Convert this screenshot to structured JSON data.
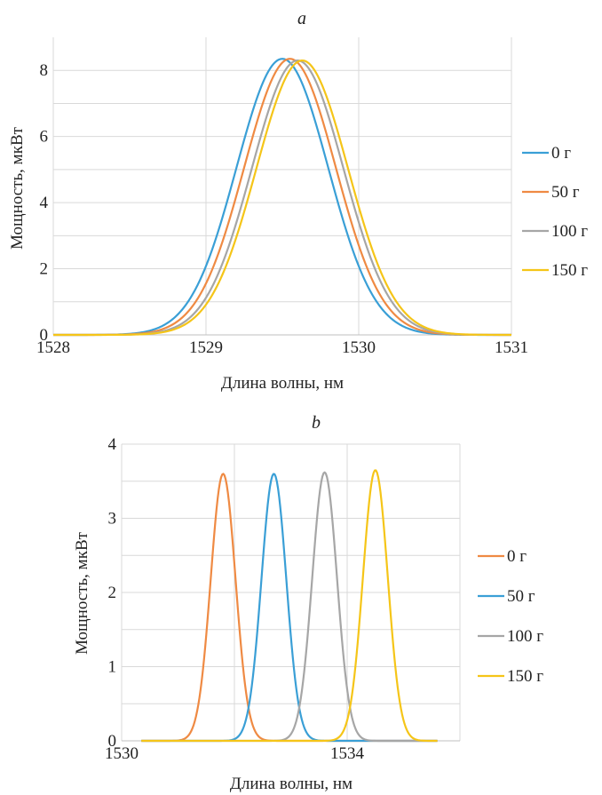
{
  "chart_data": [
    {
      "type": "line",
      "title": "a",
      "xlabel": "Длина волны, нм",
      "ylabel": "Мощность, мкВт",
      "xlim": [
        1528,
        1531
      ],
      "ylim": [
        0,
        9
      ],
      "xticks": [
        1528,
        1529,
        1530,
        1531
      ],
      "yticks": [
        0,
        2,
        4,
        6,
        8
      ],
      "grid": true,
      "legend_position": "right",
      "series": [
        {
          "name": "0 г",
          "color": "#3a9fd6",
          "peak_x": 1529.5,
          "peak_y": 8.35,
          "sigma": 0.3,
          "x": [
            1528.0,
            1528.5,
            1528.8,
            1529.0,
            1529.2,
            1529.5,
            1529.8,
            1530.0,
            1530.2,
            1530.5,
            1531.0
          ],
          "y": [
            0.0,
            0.13,
            1.05,
            2.3,
            5.2,
            8.35,
            5.2,
            2.3,
            0.88,
            0.13,
            0.0
          ]
        },
        {
          "name": "50 г",
          "color": "#ef8a43",
          "peak_x": 1529.55,
          "peak_y": 8.35,
          "sigma": 0.3,
          "x": [
            1528.0,
            1528.5,
            1528.8,
            1529.0,
            1529.25,
            1529.55,
            1529.85,
            1530.0,
            1530.25,
            1530.5,
            1531.0
          ],
          "y": [
            0.0,
            0.1,
            0.85,
            1.8,
            5.2,
            8.35,
            5.2,
            3.0,
            0.88,
            0.2,
            0.0
          ]
        },
        {
          "name": "100 г",
          "color": "#a6a6a6",
          "peak_x": 1529.6,
          "peak_y": 8.3,
          "sigma": 0.3,
          "x": [
            1528.0,
            1528.5,
            1528.8,
            1529.0,
            1529.3,
            1529.6,
            1529.9,
            1530.0,
            1530.3,
            1530.5,
            1531.0
          ],
          "y": [
            0.0,
            0.08,
            0.7,
            1.5,
            5.2,
            8.3,
            5.2,
            3.7,
            0.88,
            0.24,
            0.0
          ]
        },
        {
          "name": "150 г",
          "color": "#f5c518",
          "peak_x": 1529.63,
          "peak_y": 8.3,
          "sigma": 0.3,
          "x": [
            1528.0,
            1528.5,
            1528.8,
            1529.0,
            1529.33,
            1529.63,
            1529.93,
            1530.0,
            1530.33,
            1530.5,
            1531.0
          ],
          "y": [
            0.0,
            0.06,
            0.6,
            1.3,
            5.2,
            8.3,
            5.2,
            4.1,
            0.88,
            0.3,
            0.0
          ]
        }
      ]
    },
    {
      "type": "line",
      "title": "b",
      "xlabel": "Длина волны, нм",
      "ylabel": "Мощность, мкВт",
      "xlim": [
        1530,
        1536
      ],
      "ylim": [
        0,
        4
      ],
      "xticks": [
        1530,
        1534
      ],
      "yticks": [
        0,
        1,
        2,
        3,
        4
      ],
      "minor_x_gridlines": [
        1532,
        1536
      ],
      "minor_y_gridlines": [
        0.5,
        1.5,
        2.5,
        3.5
      ],
      "grid": true,
      "legend_position": "right",
      "series": [
        {
          "name": "0 г",
          "color": "#ef8a43",
          "peak_x": 1531.8,
          "peak_y": 3.6,
          "sigma": 0.22,
          "range": [
            1530.35,
            1535.6
          ],
          "x": [
            1530.35,
            1531.0,
            1531.4,
            1531.8,
            1532.2,
            1532.6,
            1533.0,
            1535.6
          ],
          "y": [
            0.0,
            0.05,
            0.8,
            3.6,
            0.8,
            0.1,
            0.02,
            0.0
          ]
        },
        {
          "name": "50 г",
          "color": "#3a9fd6",
          "peak_x": 1532.7,
          "peak_y": 3.6,
          "sigma": 0.22,
          "range": [
            1530.35,
            1535.6
          ],
          "x": [
            1530.35,
            1531.9,
            1532.3,
            1532.7,
            1533.1,
            1533.5,
            1533.9,
            1535.6
          ],
          "y": [
            0.0,
            0.05,
            0.8,
            3.6,
            0.8,
            0.1,
            0.02,
            0.0
          ]
        },
        {
          "name": "100 г",
          "color": "#a6a6a6",
          "peak_x": 1533.6,
          "peak_y": 3.62,
          "sigma": 0.22,
          "range": [
            1530.35,
            1535.6
          ],
          "x": [
            1530.35,
            1532.8,
            1533.2,
            1533.6,
            1534.0,
            1534.4,
            1534.8,
            1535.6
          ],
          "y": [
            0.0,
            0.05,
            0.8,
            3.62,
            0.8,
            0.1,
            0.02,
            0.0
          ]
        },
        {
          "name": "150 г",
          "color": "#f5c518",
          "peak_x": 1534.5,
          "peak_y": 3.65,
          "sigma": 0.22,
          "range": [
            1530.35,
            1535.6
          ],
          "x": [
            1530.35,
            1533.7,
            1534.1,
            1534.5,
            1534.9,
            1535.3,
            1535.6
          ],
          "y": [
            0.0,
            0.05,
            0.8,
            3.65,
            0.8,
            0.1,
            0.02
          ]
        }
      ]
    }
  ]
}
